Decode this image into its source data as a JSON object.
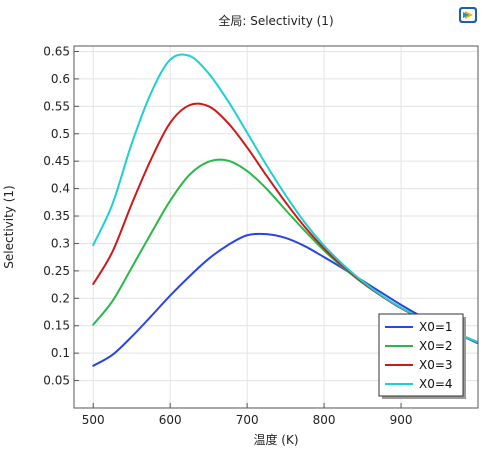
{
  "chart_data": {
    "type": "line",
    "title": "全局: Selectivity (1)",
    "xlabel": "温度  (K)",
    "ylabel": "Selectivity (1)",
    "xlim": [
      475,
      1000
    ],
    "ylim": [
      0,
      0.66
    ],
    "xticks": [
      500,
      600,
      700,
      800,
      900
    ],
    "yticks": [
      0.05,
      0.1,
      0.15,
      0.2,
      0.25,
      0.3,
      0.35,
      0.4,
      0.45,
      0.5,
      0.55,
      0.6,
      0.65
    ],
    "grid": true,
    "legend_position": "bottom-right",
    "series": [
      {
        "name": "X0=1",
        "color": "#2a45e0",
        "x": [
          500,
          525,
          550,
          575,
          600,
          625,
          650,
          675,
          700,
          725,
          750,
          775,
          800,
          825,
          850,
          875,
          900,
          925,
          950,
          975,
          1000
        ],
        "y": [
          0.077,
          0.097,
          0.13,
          0.167,
          0.205,
          0.24,
          0.272,
          0.297,
          0.315,
          0.317,
          0.31,
          0.295,
          0.275,
          0.254,
          0.232,
          0.21,
          0.188,
          0.168,
          0.15,
          0.134,
          0.118
        ]
      },
      {
        "name": "X0=2",
        "color": "#2ab84a",
        "x": [
          500,
          525,
          550,
          575,
          600,
          625,
          650,
          675,
          700,
          725,
          750,
          775,
          800,
          825,
          850,
          875,
          900,
          925,
          950,
          975,
          1000
        ],
        "y": [
          0.152,
          0.195,
          0.256,
          0.318,
          0.378,
          0.425,
          0.449,
          0.451,
          0.432,
          0.4,
          0.361,
          0.323,
          0.287,
          0.256,
          0.228,
          0.204,
          0.182,
          0.164,
          0.148,
          0.134,
          0.12
        ]
      },
      {
        "name": "X0=3",
        "color": "#cc1a1a",
        "x": [
          500,
          525,
          550,
          575,
          600,
          625,
          650,
          675,
          700,
          725,
          750,
          775,
          800,
          825,
          850,
          875,
          900,
          925,
          950,
          975,
          1000
        ],
        "y": [
          0.226,
          0.285,
          0.372,
          0.453,
          0.52,
          0.552,
          0.55,
          0.52,
          0.475,
          0.424,
          0.375,
          0.33,
          0.291,
          0.258,
          0.229,
          0.204,
          0.182,
          0.164,
          0.148,
          0.134,
          0.12
        ]
      },
      {
        "name": "X0=4",
        "color": "#1fd0d0",
        "x": [
          500,
          525,
          550,
          575,
          600,
          625,
          650,
          675,
          700,
          725,
          750,
          775,
          800,
          825,
          850,
          875,
          900,
          925,
          950,
          975,
          1000
        ],
        "y": [
          0.297,
          0.372,
          0.482,
          0.574,
          0.635,
          0.642,
          0.61,
          0.56,
          0.502,
          0.443,
          0.388,
          0.338,
          0.296,
          0.261,
          0.231,
          0.205,
          0.183,
          0.165,
          0.148,
          0.134,
          0.12
        ]
      }
    ]
  }
}
